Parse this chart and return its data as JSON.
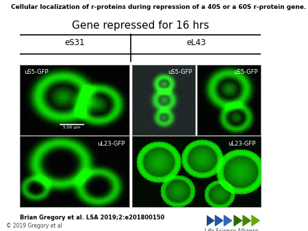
{
  "title": "Cellular localization of r-proteins during repression of a 40S or a 60S r-protein gene.",
  "gene_repressed_label": "Gene repressed for 16 hrs",
  "col_labels": [
    "eS31",
    "eL43"
  ],
  "panel_labels": [
    "uS5-GFP",
    "uS5-GFP",
    "uS5-GFP",
    "uL23-GFP",
    "uL23-GFP"
  ],
  "scalebar_label": "5.00 μm",
  "citation": "Brian Gregory et al. LSA 2019;2:e201800150",
  "copyright": "© 2019 Gregory et al",
  "logo_text": "Life Science Alliance",
  "background_color": "#ffffff",
  "title_fontsize": 6.5,
  "gene_label_fontsize": 11,
  "col_label_fontsize": 8.5,
  "cell_label_fontsize": 6,
  "citation_fontsize": 6,
  "copyright_fontsize": 5.5,
  "logo_fontsize": 5.5
}
